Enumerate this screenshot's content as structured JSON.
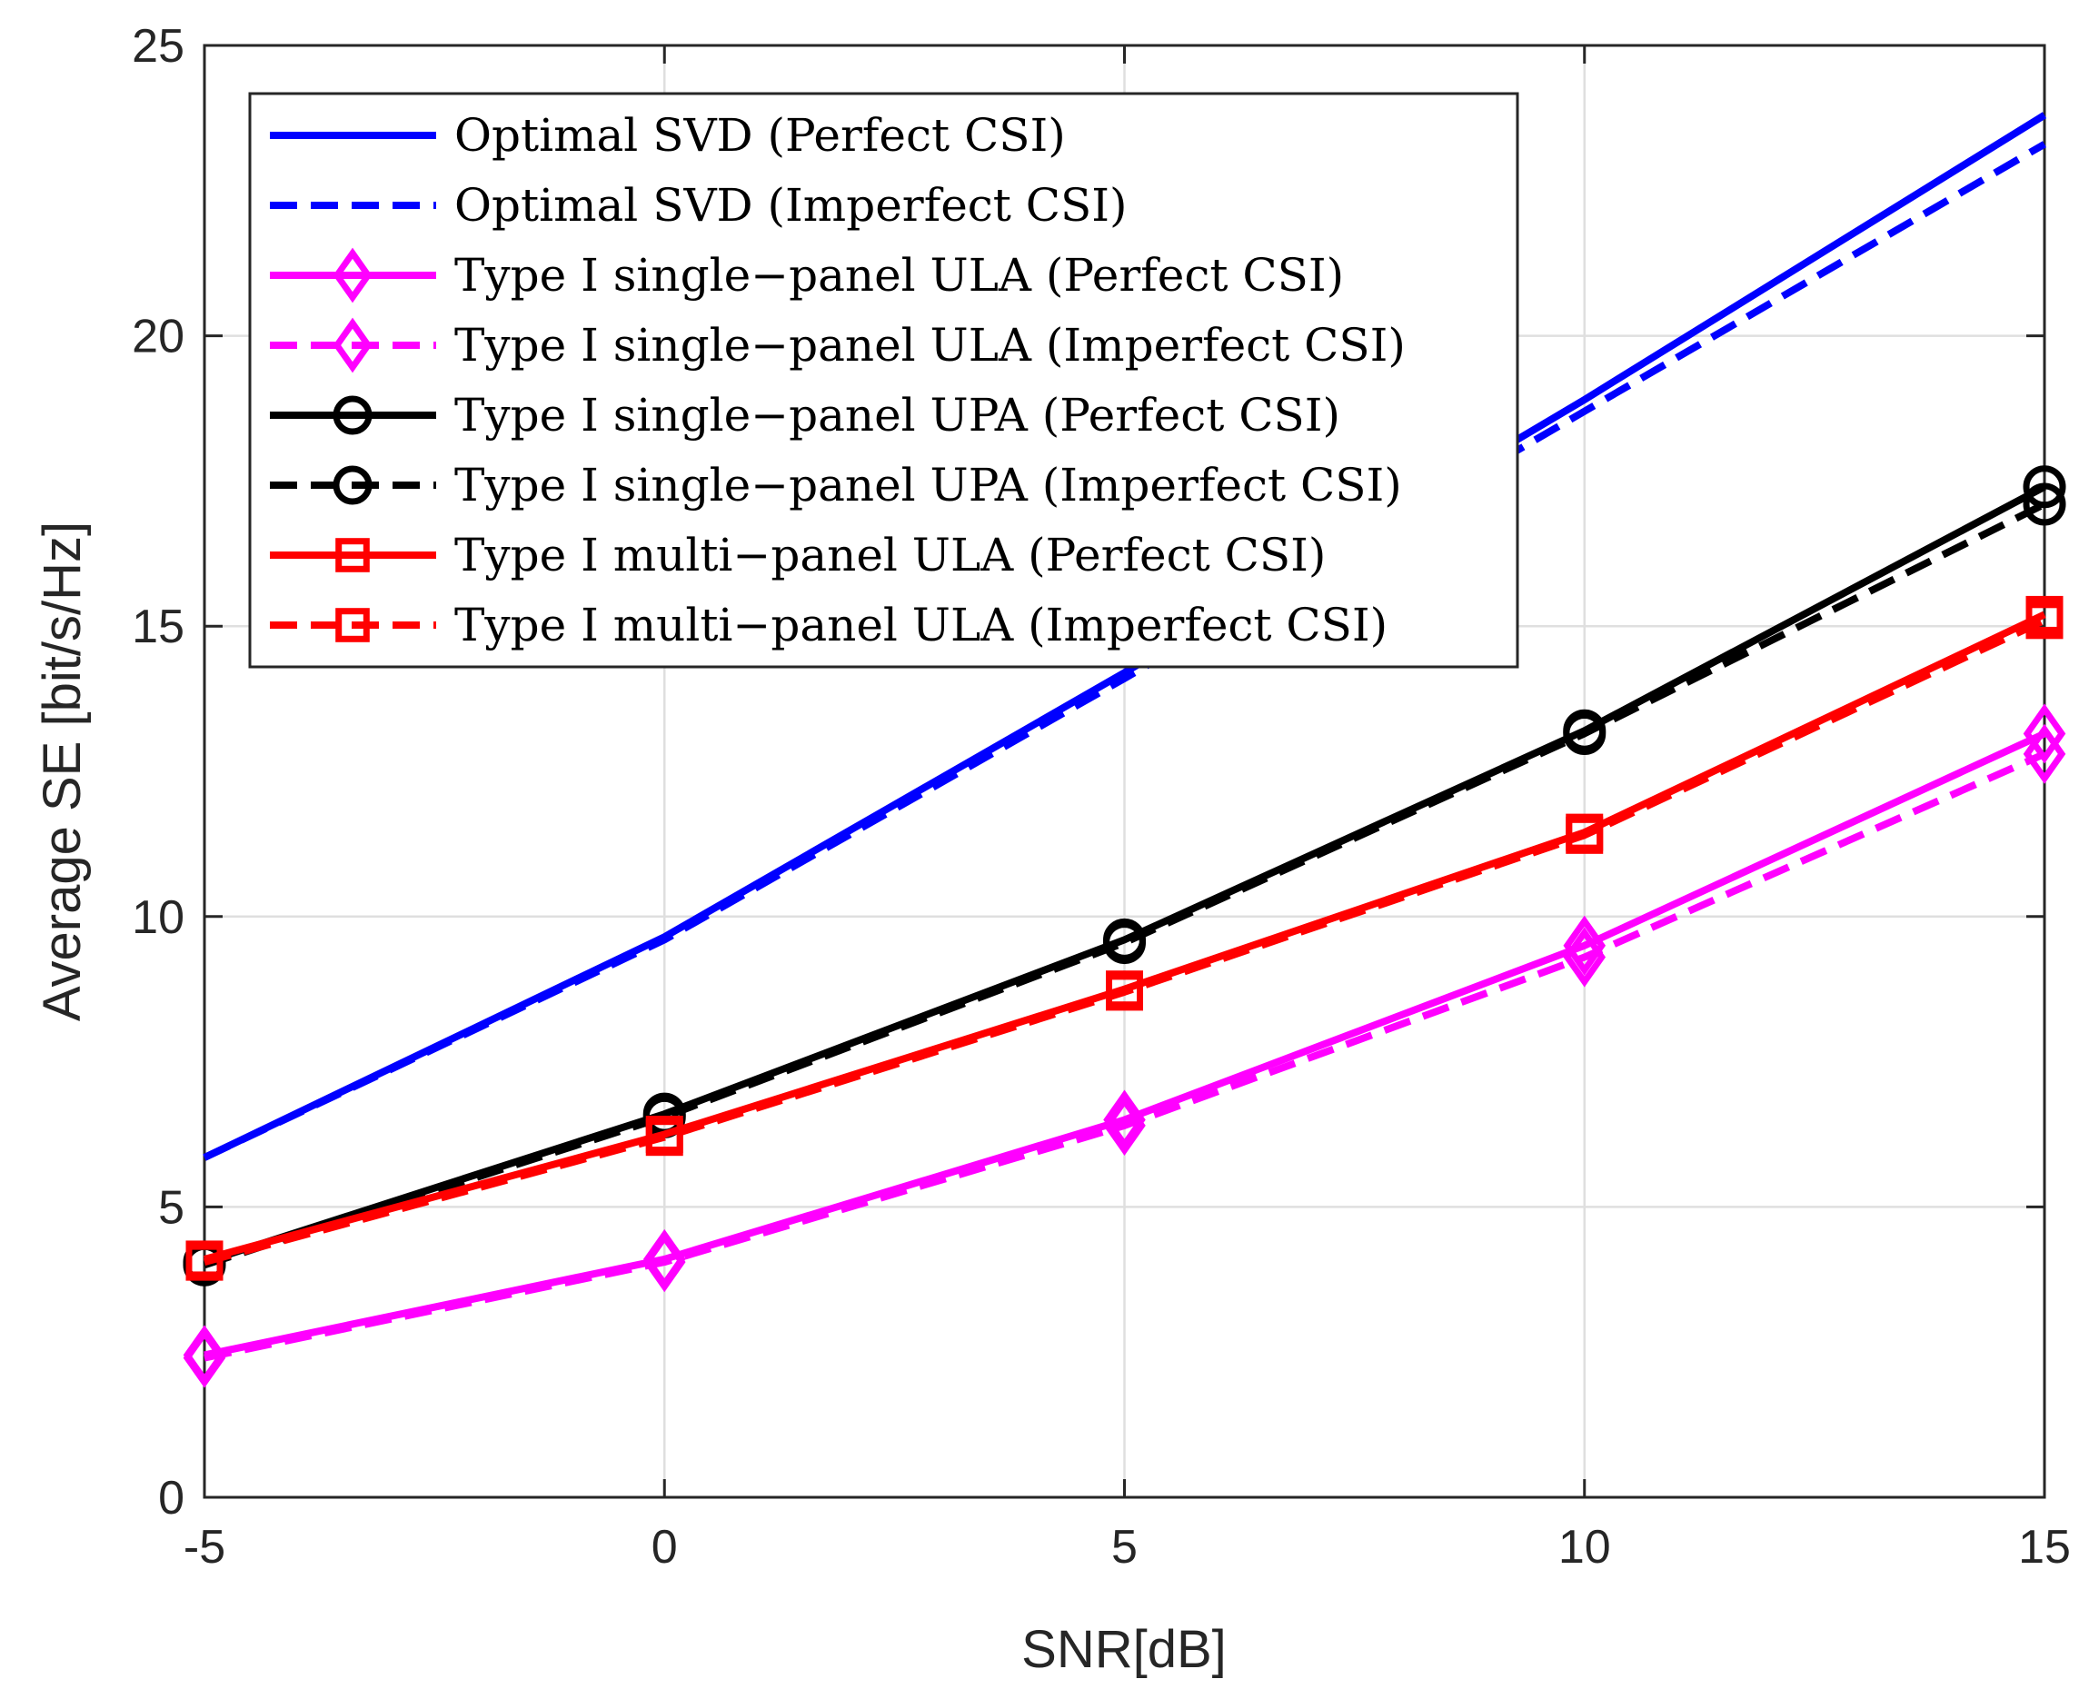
{
  "chart_data": {
    "type": "line",
    "title": "",
    "xlabel": "SNR[dB]",
    "ylabel": "Average SE [bit/s/Hz]",
    "xlim": [
      -5,
      15
    ],
    "ylim": [
      0,
      25
    ],
    "x_ticks": [
      -5,
      0,
      5,
      10,
      15
    ],
    "y_ticks": [
      0,
      5,
      10,
      15,
      20,
      25
    ],
    "grid": true,
    "legend_position": "top-left",
    "x": [
      -5,
      0,
      5,
      10,
      15
    ],
    "series": [
      {
        "name": "Optimal SVD (Perfect CSI)",
        "color": "#0000ff",
        "dash": "solid",
        "marker": "none",
        "values": [
          5.85,
          9.65,
          14.2,
          18.9,
          23.8
        ]
      },
      {
        "name": "Optimal SVD (Imperfect CSI)",
        "color": "#0000ff",
        "dash": "dashed",
        "marker": "none",
        "values": [
          5.85,
          9.6,
          14.1,
          18.7,
          23.3
        ]
      },
      {
        "name": "Type I single−panel ULA (Perfect CSI)",
        "color": "#ff00ff",
        "dash": "solid",
        "marker": "diamond",
        "values": [
          2.45,
          4.1,
          6.5,
          9.5,
          13.15
        ]
      },
      {
        "name": "Type I single−panel ULA (Imperfect CSI)",
        "color": "#ff00ff",
        "dash": "dashed",
        "marker": "diamond",
        "values": [
          2.4,
          4.05,
          6.4,
          9.3,
          12.8
        ]
      },
      {
        "name": "Type I single−panel UPA (Perfect CSI)",
        "color": "#000000",
        "dash": "solid",
        "marker": "circle",
        "values": [
          4.05,
          6.6,
          9.6,
          13.2,
          17.4
        ]
      },
      {
        "name": "Type I single−panel UPA (Imperfect CSI)",
        "color": "#000000",
        "dash": "dashed",
        "marker": "circle",
        "values": [
          4.0,
          6.55,
          9.55,
          13.15,
          17.1
        ]
      },
      {
        "name": "Type I multi−panel ULA (Perfect CSI)",
        "color": "#ff0000",
        "dash": "solid",
        "marker": "square",
        "values": [
          4.1,
          6.25,
          8.75,
          11.45,
          15.2
        ]
      },
      {
        "name": "Type I multi−panel ULA (Imperfect CSI)",
        "color": "#ff0000",
        "dash": "dashed",
        "marker": "square",
        "values": [
          4.05,
          6.2,
          8.7,
          11.4,
          15.1
        ]
      }
    ]
  }
}
